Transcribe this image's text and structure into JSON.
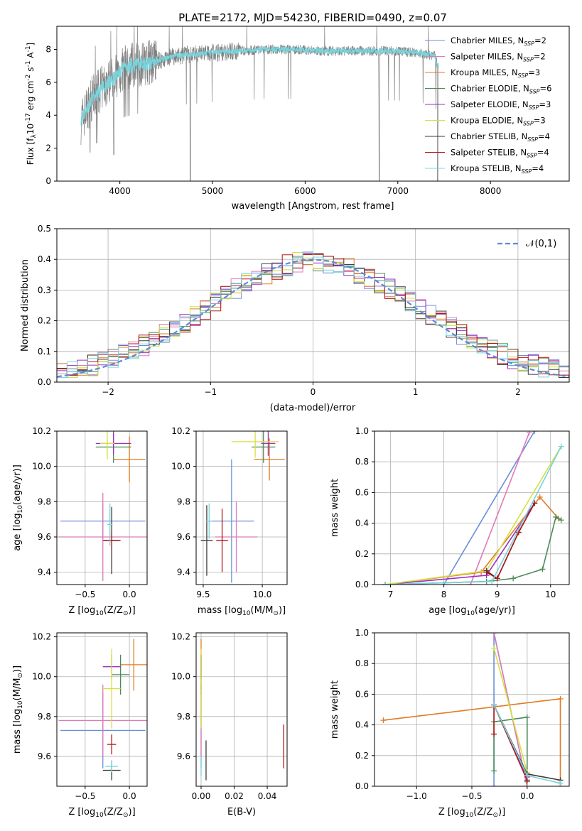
{
  "figure": {
    "title": "PLATE=2172, MJD=54230, FIBERID=0490, z=0.07"
  },
  "model_colors": {
    "Chabrier MILES": "#6a8fd8",
    "Salpeter MILES": "#e07ab8",
    "Kroupa MILES": "#e07b22",
    "Chabrier ELODIE": "#4d8a5a",
    "Salpeter ELODIE": "#9b30c0",
    "Kroupa ELODIE": "#d6e040",
    "Chabrier STELIB": "#3a3a3a",
    "Salpeter STELIB": "#b01818",
    "Kroupa STELIB": "#78d4dc"
  },
  "chart_data": [
    {
      "id": "spectrum",
      "type": "line",
      "title": "PLATE=2172, MJD=54230, FIBERID=0490, z=0.07",
      "xlabel": "wavelength [Angstrom, rest frame]",
      "ylabel": "Flux [f$_\\lambda$10$^{-17}$ erg cm$^{-2}$ s$^{-1}$ A$^{-1}$]",
      "xlim": [
        3320,
        8850
      ],
      "ylim": [
        0,
        9.4
      ],
      "xticks": [
        4000,
        5000,
        6000,
        7000,
        8000
      ],
      "yticks": [
        0,
        2,
        4,
        6,
        8
      ],
      "grid": false,
      "legend_position": "top-right",
      "data_color": "#808080",
      "model_color": "#78d4dc",
      "legend": [
        {
          "label": "Chabrier MILES, N$_{SSP}$=2",
          "color": "#6a8fd8"
        },
        {
          "label": "Salpeter MILES, N$_{SSP}$=2",
          "color": "#e07ab8"
        },
        {
          "label": "Kroupa MILES, N$_{SSP}$=3",
          "color": "#e07b22"
        },
        {
          "label": "Chabrier ELODIE, N$_{SSP}$=6",
          "color": "#4d8a5a"
        },
        {
          "label": "Salpeter ELODIE, N$_{SSP}$=3",
          "color": "#9b30c0"
        },
        {
          "label": "Kroupa ELODIE, N$_{SSP}$=3",
          "color": "#d6e040"
        },
        {
          "label": "Chabrier STELIB, N$_{SSP}$=4",
          "color": "#3a3a3a"
        },
        {
          "label": "Salpeter STELIB, N$_{SSP}$=4",
          "color": "#b01818"
        },
        {
          "label": "Kroupa STELIB, N$_{SSP}$=4",
          "color": "#78d4dc"
        }
      ],
      "continuum": {
        "x": [
          3580,
          3700,
          3850,
          3950,
          4050,
          4200,
          4400,
          4600,
          4800,
          5000,
          5300,
          5600,
          5900,
          6200,
          6500,
          6800,
          7000,
          7200,
          7400,
          7430
        ],
        "y": [
          3.6,
          5.0,
          5.9,
          6.3,
          6.9,
          7.1,
          7.3,
          7.6,
          7.7,
          7.8,
          7.9,
          8.0,
          8.0,
          7.9,
          7.9,
          7.9,
          7.9,
          7.8,
          7.6,
          7.0
        ]
      },
      "dips": [
        {
          "x": 3935,
          "y": 1.6
        },
        {
          "x": 4760,
          "y": 0.0
        },
        {
          "x": 6800,
          "y": 0.0
        },
        {
          "x": 7430,
          "y": 0.0
        }
      ]
    },
    {
      "id": "residuals",
      "type": "line",
      "xlabel": "(data-model)/error",
      "ylabel": "Normed distribution",
      "xlim": [
        -2.5,
        2.5
      ],
      "ylim": [
        0,
        0.5
      ],
      "xticks": [
        -2,
        -1,
        0,
        1,
        2
      ],
      "yticks": [
        0.0,
        0.1,
        0.2,
        0.3,
        0.4,
        0.5
      ],
      "grid": true,
      "legend_position": "top-right",
      "gaussian_label": "$\\mathcal{N}(0,1)$",
      "gaussian_color": "#5b8ad6",
      "histogram_bin_width": 0.1
    },
    {
      "id": "z_age",
      "type": "scatter",
      "xlabel": "Z [log$_{10}$(Z/Z$_\\odot$)]",
      "ylabel": "age  [log$_{10}$(age/yr)]",
      "xlim": [
        -0.82,
        0.2
      ],
      "ylim": [
        9.33,
        10.2
      ],
      "xticks": [
        -0.5,
        0.0
      ],
      "yticks": [
        9.4,
        9.6,
        9.8,
        10.0,
        10.2
      ],
      "grid": true,
      "points": [
        {
          "model": "Chabrier MILES",
          "x": -0.3,
          "y": 9.69,
          "xerr": 0.48,
          "yerr": 0.1
        },
        {
          "model": "Salpeter MILES",
          "x": -0.3,
          "y": 9.6,
          "xerr": 0.5,
          "yerr": 0.25
        },
        {
          "model": "Kroupa MILES",
          "x": 0.0,
          "y": 10.04,
          "xerr": 0.18,
          "yerr": 0.13
        },
        {
          "model": "Chabrier ELODIE",
          "x": -0.18,
          "y": 10.11,
          "xerr": 0.2,
          "yerr": 0.09
        },
        {
          "model": "Salpeter ELODIE",
          "x": -0.18,
          "y": 10.13,
          "xerr": 0.2,
          "yerr": 0.06
        },
        {
          "model": "Kroupa ELODIE",
          "x": -0.25,
          "y": 10.13,
          "xerr": 0.08,
          "yerr": 0.09
        },
        {
          "model": "Chabrier STELIB",
          "x": -0.2,
          "y": 9.58,
          "xerr": 0.09,
          "yerr": 0.19
        },
        {
          "model": "Salpeter STELIB",
          "x": -0.2,
          "y": 9.58,
          "xerr": 0.1,
          "yerr": 0.05
        },
        {
          "model": "Kroupa STELIB",
          "x": -0.22,
          "y": 9.67,
          "xerr": 0.03,
          "yerr": 0.12
        }
      ]
    },
    {
      "id": "mass_age",
      "type": "scatter",
      "xlabel": "mass [log$_{10}$(M/M$_\\odot$)]",
      "ylabel": "",
      "xlim": [
        9.44,
        10.21
      ],
      "ylim": [
        9.33,
        10.2
      ],
      "xticks": [
        9.5,
        10.0
      ],
      "yticks": [
        9.4,
        9.6,
        9.8,
        10.0,
        10.2
      ],
      "grid": true,
      "points": [
        {
          "model": "Chabrier MILES",
          "x": 9.74,
          "y": 9.69,
          "xerr": 0.19,
          "yerr": 0.35
        },
        {
          "model": "Salpeter MILES",
          "x": 9.78,
          "y": 9.6,
          "xerr": 0.18,
          "yerr": 0.2
        },
        {
          "model": "Kroupa MILES",
          "x": 10.06,
          "y": 10.04,
          "xerr": 0.13,
          "yerr": 0.12
        },
        {
          "model": "Chabrier ELODIE",
          "x": 10.01,
          "y": 10.11,
          "xerr": 0.1,
          "yerr": 0.09
        },
        {
          "model": "Salpeter ELODIE",
          "x": 10.05,
          "y": 10.13,
          "xerr": 0.06,
          "yerr": 0.07
        },
        {
          "model": "Kroupa ELODIE",
          "x": 9.94,
          "y": 10.14,
          "xerr": 0.2,
          "yerr": 0.09
        },
        {
          "model": "Chabrier STELIB",
          "x": 9.53,
          "y": 9.58,
          "xerr": 0.05,
          "yerr": 0.2
        },
        {
          "model": "Salpeter STELIB",
          "x": 9.66,
          "y": 9.58,
          "xerr": 0.05,
          "yerr": 0.18
        },
        {
          "model": "Kroupa STELIB",
          "x": 9.55,
          "y": 9.69,
          "xerr": 0.03,
          "yerr": 0.1
        }
      ]
    },
    {
      "id": "age_weight",
      "type": "line",
      "xlabel": "age  [log$_{10}$(age/yr)]",
      "ylabel": "mass weight",
      "xlim": [
        6.7,
        10.35
      ],
      "ylim": [
        0,
        1.0
      ],
      "xticks": [
        7,
        8,
        9,
        10
      ],
      "yticks": [
        0.0,
        0.2,
        0.4,
        0.6,
        0.8,
        1.0
      ],
      "grid": true,
      "series": [
        {
          "model": "Chabrier MILES",
          "x": [
            8.0,
            9.7
          ],
          "y": [
            0.0,
            1.0
          ]
        },
        {
          "model": "Salpeter MILES",
          "x": [
            8.5,
            9.6
          ],
          "y": [
            0.0,
            0.99
          ]
        },
        {
          "model": "Kroupa MILES",
          "x": [
            6.9,
            8.7,
            9.8,
            10.15
          ],
          "y": [
            0.0,
            0.08,
            0.57,
            0.43
          ]
        },
        {
          "model": "Chabrier ELODIE",
          "x": [
            6.9,
            8.8,
            9.3,
            9.85,
            10.1,
            10.2
          ],
          "y": [
            0.0,
            0.02,
            0.04,
            0.1,
            0.44,
            0.42
          ]
        },
        {
          "model": "Salpeter ELODIE",
          "x": [
            6.9,
            8.8,
            9.7
          ],
          "y": [
            0.0,
            0.06,
            0.53
          ]
        },
        {
          "model": "Kroupa ELODIE",
          "x": [
            6.9,
            8.8,
            10.2
          ],
          "y": [
            0.0,
            0.09,
            0.9
          ]
        },
        {
          "model": "Chabrier STELIB",
          "x": [
            8.8,
            9.0,
            9.4,
            9.7
          ],
          "y": [
            0.09,
            0.04,
            0.34,
            0.53
          ]
        },
        {
          "model": "Salpeter STELIB",
          "x": [
            8.8,
            9.0,
            9.4,
            9.7
          ],
          "y": [
            0.08,
            0.04,
            0.34,
            0.53
          ]
        },
        {
          "model": "Kroupa STELIB",
          "x": [
            6.9,
            8.9,
            10.2
          ],
          "y": [
            0.0,
            0.02,
            0.9
          ]
        }
      ]
    },
    {
      "id": "z_mass",
      "type": "scatter",
      "xlabel": "Z [log$_{10}$(Z/Z$_\\odot$)]",
      "ylabel": "mass [log$_{10}$(M/M$_\\odot$)]",
      "xlim": [
        -0.82,
        0.2
      ],
      "ylim": [
        9.45,
        10.22
      ],
      "xticks": [
        -0.5,
        0.0
      ],
      "yticks": [
        9.6,
        9.8,
        10.0,
        10.2
      ],
      "grid": true,
      "points": [
        {
          "model": "Chabrier MILES",
          "x": -0.3,
          "y": 9.73,
          "xerr": 0.48,
          "yerr": 0.19
        },
        {
          "model": "Salpeter MILES",
          "x": -0.3,
          "y": 9.78,
          "xerr": 0.5,
          "yerr": 0.18
        },
        {
          "model": "Kroupa MILES",
          "x": 0.05,
          "y": 10.06,
          "xerr": 0.15,
          "yerr": 0.13
        },
        {
          "model": "Chabrier ELODIE",
          "x": -0.1,
          "y": 10.01,
          "xerr": 0.1,
          "yerr": 0.1
        },
        {
          "model": "Salpeter ELODIE",
          "x": -0.2,
          "y": 10.05,
          "xerr": 0.1,
          "yerr": 0.06
        },
        {
          "model": "Kroupa ELODIE",
          "x": -0.2,
          "y": 9.94,
          "xerr": 0.1,
          "yerr": 0.2
        },
        {
          "model": "Chabrier STELIB",
          "x": -0.2,
          "y": 9.53,
          "xerr": 0.1,
          "yerr": 0.05
        },
        {
          "model": "Salpeter STELIB",
          "x": -0.2,
          "y": 9.66,
          "xerr": 0.05,
          "yerr": 0.05
        },
        {
          "model": "Kroupa STELIB",
          "x": -0.2,
          "y": 9.55,
          "xerr": 0.07,
          "yerr": 0.03
        }
      ]
    },
    {
      "id": "ebv_mass",
      "type": "scatter",
      "xlabel": "E(B-V)",
      "ylabel": "",
      "xlim": [
        -0.003,
        0.052
      ],
      "ylim": [
        9.45,
        10.22
      ],
      "xticks": [
        0.0,
        0.02,
        0.04
      ],
      "yticks": [
        9.6,
        9.8,
        10.0,
        10.2
      ],
      "grid": true,
      "points": [
        {
          "model": "Chabrier MILES",
          "x": 0.0,
          "y": 9.73,
          "xerr": 0.0,
          "yerr": 0.19
        },
        {
          "model": "Salpeter MILES",
          "x": 0.0,
          "y": 9.78,
          "xerr": 0.0,
          "yerr": 0.18
        },
        {
          "model": "Kroupa MILES",
          "x": 0.0,
          "y": 10.06,
          "xerr": 0.0,
          "yerr": 0.13
        },
        {
          "model": "Chabrier ELODIE",
          "x": 0.0,
          "y": 10.01,
          "xerr": 0.0,
          "yerr": 0.1
        },
        {
          "model": "Salpeter ELODIE",
          "x": 0.0,
          "y": 10.05,
          "xerr": 0.0,
          "yerr": 0.06
        },
        {
          "model": "Kroupa ELODIE",
          "x": 0.0,
          "y": 9.94,
          "xerr": 0.0,
          "yerr": 0.2
        },
        {
          "model": "Chabrier STELIB",
          "x": 0.003,
          "y": 9.58,
          "xerr": 0.0,
          "yerr": 0.1
        },
        {
          "model": "Salpeter STELIB",
          "x": 0.05,
          "y": 9.65,
          "xerr": 0.0,
          "yerr": 0.11
        },
        {
          "model": "Kroupa STELIB",
          "x": 0.0,
          "y": 9.55,
          "xerr": 0.0,
          "yerr": 0.05
        }
      ]
    },
    {
      "id": "z_weight",
      "type": "line",
      "xlabel": "Z [log$_{10}$(Z/Z$_\\odot$)]",
      "ylabel": "mass weight",
      "xlim": [
        -1.38,
        0.38
      ],
      "ylim": [
        0,
        1.0
      ],
      "xticks": [
        -1.0,
        -0.5,
        0.0
      ],
      "yticks": [
        0.0,
        0.2,
        0.4,
        0.6,
        0.8,
        1.0
      ],
      "grid": true,
      "series": [
        {
          "model": "Chabrier MILES",
          "x": [
            -0.3,
            -0.3,
            0.0
          ],
          "y": [
            0.0,
            1.0,
            0.0
          ]
        },
        {
          "model": "Salpeter MILES",
          "x": [
            -0.3,
            0.0
          ],
          "y": [
            1.0,
            0.0
          ]
        },
        {
          "model": "Kroupa MILES",
          "x": [
            -1.3,
            0.3,
            0.3
          ],
          "y": [
            0.43,
            0.57,
            0.0
          ]
        },
        {
          "model": "Chabrier ELODIE",
          "x": [
            -0.3,
            -0.3,
            0.0,
            0.0
          ],
          "y": [
            0.1,
            0.42,
            0.45,
            0.03
          ]
        },
        {
          "model": "Salpeter ELODIE",
          "x": [
            -0.3,
            0.0
          ],
          "y": [
            0.53,
            0.06
          ]
        },
        {
          "model": "Kroupa ELODIE",
          "x": [
            -0.3,
            0.0
          ],
          "y": [
            0.9,
            0.09
          ]
        },
        {
          "model": "Chabrier STELIB",
          "x": [
            -0.3,
            0.0,
            0.3
          ],
          "y": [
            0.53,
            0.08,
            0.04
          ]
        },
        {
          "model": "Salpeter STELIB",
          "x": [
            -0.3,
            -0.3,
            0.0
          ],
          "y": [
            0.34,
            0.53,
            0.04
          ]
        },
        {
          "model": "Kroupa STELIB",
          "x": [
            -0.3,
            0.0,
            0.3
          ],
          "y": [
            0.53,
            0.07,
            0.02
          ]
        }
      ]
    }
  ]
}
